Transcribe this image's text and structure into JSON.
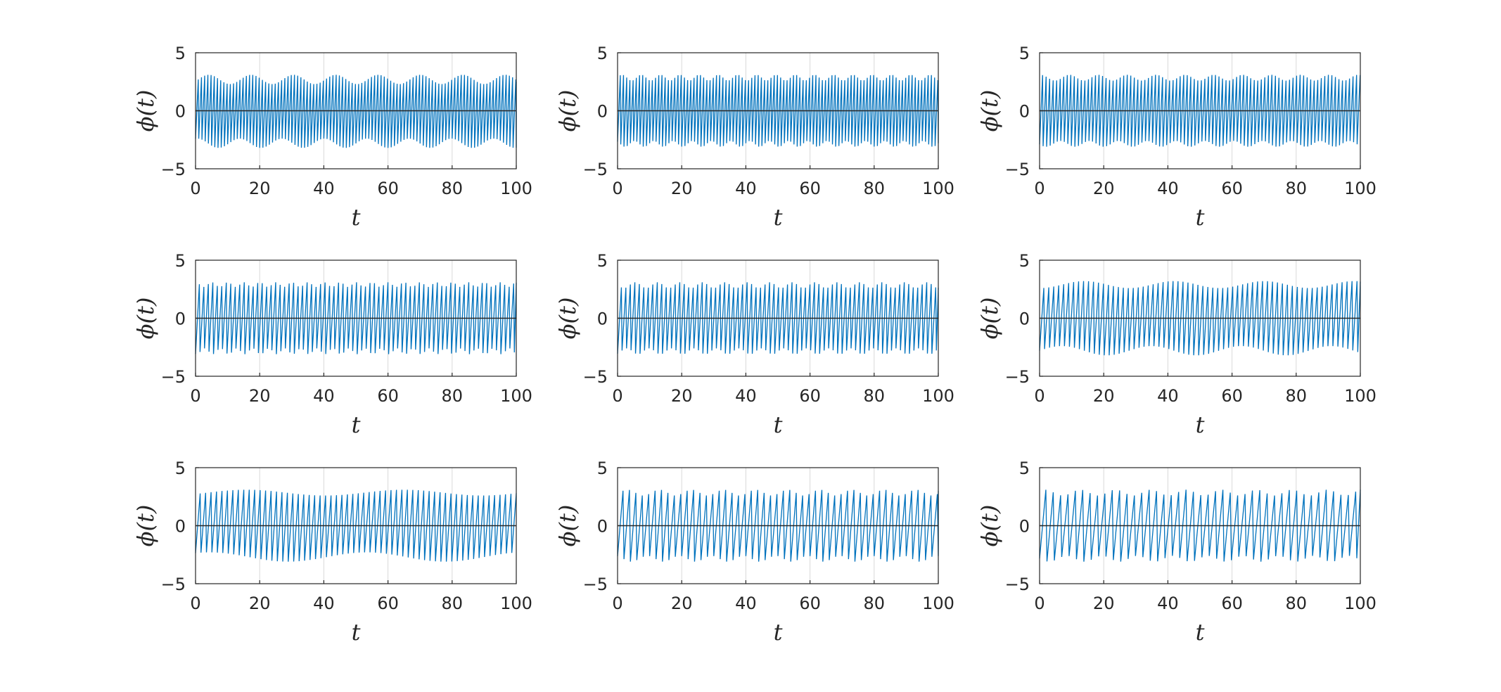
{
  "colors": {
    "series": "#0072BD",
    "axis": "#262626",
    "grid": "#d9d9d9",
    "zero_line": "#262626"
  },
  "chart_data": [
    {
      "type": "line",
      "xlabel": "t",
      "ylabel": "ϕ(t)",
      "xlim": [
        0,
        100
      ],
      "ylim": [
        -5,
        5
      ],
      "xticks": [
        "0",
        "20",
        "40",
        "60",
        "80",
        "100"
      ],
      "yticks": [
        "-5",
        "0",
        "5"
      ],
      "grid": "vertical",
      "reference_line": 0,
      "series": [
        {
          "period": 1.0,
          "amp_max": [
            2.3,
            3.1
          ],
          "amp_min": [
            -3.2,
            -2.4
          ],
          "envelope_period": 13.2,
          "x_range": [
            0,
            100
          ]
        }
      ]
    },
    {
      "type": "line",
      "xlabel": "t",
      "ylabel": "ϕ(t)",
      "xlim": [
        0,
        100
      ],
      "ylim": [
        -5,
        5
      ],
      "xticks": [
        "0",
        "20",
        "40",
        "60",
        "80",
        "100"
      ],
      "yticks": [
        "-5",
        "0",
        "5"
      ],
      "grid": "vertical",
      "reference_line": 0,
      "series": [
        {
          "period": 1.0,
          "amp_max": [
            2.6,
            3.1
          ],
          "amp_min": [
            -3.1,
            -2.6
          ],
          "envelope_period": 6.0,
          "x_range": [
            0,
            100
          ]
        }
      ]
    },
    {
      "type": "line",
      "xlabel": "t",
      "ylabel": "ϕ(t)",
      "xlim": [
        0,
        100
      ],
      "ylim": [
        -5,
        5
      ],
      "xticks": [
        "0",
        "20",
        "40",
        "60",
        "80",
        "100"
      ],
      "yticks": [
        "-5",
        "0",
        "5"
      ],
      "grid": "vertical",
      "reference_line": 0,
      "series": [
        {
          "period": 1.1,
          "amp_max": [
            2.6,
            3.1
          ],
          "amp_min": [
            -3.1,
            -2.6
          ],
          "envelope_period": 9.0,
          "x_range": [
            0,
            100
          ]
        }
      ]
    },
    {
      "type": "line",
      "xlabel": "t",
      "ylabel": "ϕ(t)",
      "xlim": [
        0,
        100
      ],
      "ylim": [
        -5,
        5
      ],
      "xticks": [
        "0",
        "20",
        "40",
        "60",
        "80",
        "100"
      ],
      "yticks": [
        "-5",
        "0",
        "5"
      ],
      "grid": "vertical",
      "reference_line": 0,
      "series": [
        {
          "period": 1.4,
          "amp_max": [
            2.7,
            3.1
          ],
          "amp_min": [
            -3.1,
            -2.6
          ],
          "envelope_period": 5.0,
          "x_range": [
            0,
            100
          ]
        }
      ]
    },
    {
      "type": "line",
      "xlabel": "t",
      "ylabel": "ϕ(t)",
      "xlim": [
        0,
        100
      ],
      "ylim": [
        -5,
        5
      ],
      "xticks": [
        "0",
        "20",
        "40",
        "60",
        "80",
        "100"
      ],
      "yticks": [
        "-5",
        "0",
        "5"
      ],
      "grid": "vertical",
      "reference_line": 0,
      "series": [
        {
          "period": 1.4,
          "amp_max": [
            2.6,
            3.1
          ],
          "amp_min": [
            -3.1,
            -2.6
          ],
          "envelope_period": 7.0,
          "x_range": [
            0,
            100
          ]
        }
      ]
    },
    {
      "type": "line",
      "xlabel": "t",
      "ylabel": "ϕ(t)",
      "xlim": [
        0,
        100
      ],
      "ylim": [
        -5,
        5
      ],
      "xticks": [
        "0",
        "20",
        "40",
        "60",
        "80",
        "100"
      ],
      "yticks": [
        "-5",
        "0",
        "5"
      ],
      "grid": "vertical",
      "reference_line": 0,
      "series": [
        {
          "period": 1.55,
          "amp_max": [
            2.6,
            3.2
          ],
          "amp_min": [
            -3.2,
            -2.4
          ],
          "envelope_period": 28.0,
          "x_range": [
            0,
            100
          ]
        }
      ]
    },
    {
      "type": "line",
      "xlabel": "t",
      "ylabel": "ϕ(t)",
      "xlim": [
        0,
        100
      ],
      "ylim": [
        -5,
        5
      ],
      "xticks": [
        "0",
        "20",
        "40",
        "60",
        "80",
        "100"
      ],
      "yticks": [
        "-5",
        "0",
        "5"
      ],
      "grid": "vertical",
      "reference_line": 0,
      "series": [
        {
          "period": 1.7,
          "amp_max": [
            2.6,
            3.1
          ],
          "amp_min": [
            -3.1,
            -2.3
          ],
          "envelope_period": 49.0,
          "x_range": [
            0,
            100
          ]
        }
      ]
    },
    {
      "type": "line",
      "xlabel": "t",
      "ylabel": "ϕ(t)",
      "xlim": [
        0,
        100
      ],
      "ylim": [
        -5,
        5
      ],
      "xticks": [
        "0",
        "20",
        "40",
        "60",
        "80",
        "100"
      ],
      "yticks": [
        "-5",
        "0",
        "5"
      ],
      "grid": "vertical",
      "reference_line": 0,
      "series": [
        {
          "period": 2.0,
          "amp_max": [
            2.6,
            3.1
          ],
          "amp_min": [
            -3.1,
            -2.6
          ],
          "envelope_period": 10.0,
          "x_range": [
            0,
            100
          ]
        }
      ]
    },
    {
      "type": "line",
      "xlabel": "t",
      "ylabel": "ϕ(t)",
      "xlim": [
        0,
        100
      ],
      "ylim": [
        -5,
        5
      ],
      "xticks": [
        "0",
        "20",
        "40",
        "60",
        "80",
        "100"
      ],
      "yticks": [
        "-5",
        "0",
        "5"
      ],
      "grid": "vertical",
      "reference_line": 0,
      "series": [
        {
          "period": 2.3,
          "amp_max": [
            2.6,
            3.1
          ],
          "amp_min": [
            -3.1,
            -2.6
          ],
          "envelope_period": 11.0,
          "x_range": [
            0,
            100
          ]
        }
      ]
    }
  ]
}
